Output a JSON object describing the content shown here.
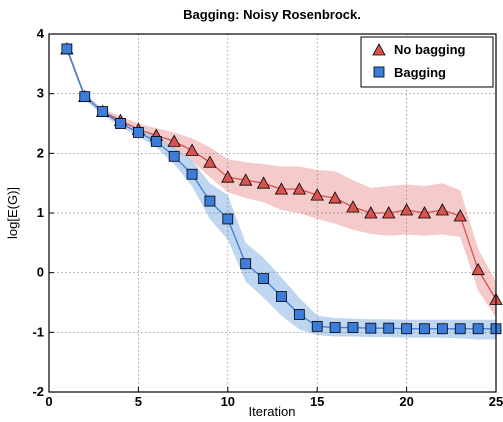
{
  "chart_data": {
    "type": "line",
    "title": "Bagging: Noisy Rosenbrock.",
    "xlabel": "Iteration",
    "ylabel": "log[E(G)]",
    "xlim": [
      0,
      25
    ],
    "ylim": [
      -2,
      4
    ],
    "x_ticks": [
      "0",
      "5",
      "10",
      "15",
      "20",
      "25"
    ],
    "y_ticks": [
      "-2",
      "-1",
      "0",
      "1",
      "2",
      "3",
      "4"
    ],
    "grid": true,
    "legend_position": "top-right",
    "series": [
      {
        "name": "No bagging",
        "marker": "triangle",
        "color": "#d9534f",
        "band_color": "#f2b8b8",
        "x": [
          1,
          2,
          3,
          4,
          5,
          6,
          7,
          8,
          9,
          10,
          11,
          12,
          13,
          14,
          15,
          16,
          17,
          18,
          19,
          20,
          21,
          22,
          23,
          24,
          25
        ],
        "values": [
          3.75,
          2.95,
          2.7,
          2.55,
          2.4,
          2.3,
          2.2,
          2.05,
          1.85,
          1.6,
          1.55,
          1.5,
          1.4,
          1.4,
          1.3,
          1.25,
          1.1,
          1.0,
          1.0,
          1.05,
          1.0,
          1.05,
          0.95,
          0.05,
          -0.45
        ],
        "lower": [
          3.7,
          2.9,
          2.65,
          2.48,
          2.33,
          2.2,
          2.05,
          1.87,
          1.6,
          1.35,
          1.25,
          1.18,
          1.05,
          1.0,
          0.9,
          0.82,
          0.72,
          0.65,
          0.62,
          0.64,
          0.62,
          0.64,
          0.6,
          -0.3,
          -0.75
        ],
        "upper": [
          3.8,
          3.0,
          2.75,
          2.62,
          2.5,
          2.42,
          2.35,
          2.25,
          2.1,
          1.9,
          1.85,
          1.82,
          1.78,
          1.78,
          1.72,
          1.7,
          1.55,
          1.42,
          1.45,
          1.48,
          1.45,
          1.5,
          1.38,
          0.4,
          -0.15
        ]
      },
      {
        "name": "Bagging",
        "marker": "square",
        "color": "#3b7dd8",
        "band_color": "#a9c8ec",
        "x": [
          1,
          2,
          3,
          4,
          5,
          6,
          7,
          8,
          9,
          10,
          11,
          12,
          13,
          14,
          15,
          16,
          17,
          18,
          19,
          20,
          21,
          22,
          23,
          24,
          25
        ],
        "values": [
          3.75,
          2.95,
          2.7,
          2.5,
          2.35,
          2.2,
          1.95,
          1.65,
          1.2,
          0.9,
          0.15,
          -0.1,
          -0.4,
          -0.7,
          -0.9,
          -0.92,
          -0.92,
          -0.93,
          -0.93,
          -0.94,
          -0.94,
          -0.94,
          -0.94,
          -0.94,
          -0.94
        ],
        "lower": [
          3.7,
          2.9,
          2.65,
          2.44,
          2.28,
          2.1,
          1.82,
          1.45,
          0.9,
          0.55,
          -0.15,
          -0.42,
          -0.72,
          -0.95,
          -1.05,
          -1.07,
          -1.07,
          -1.08,
          -1.08,
          -1.09,
          -1.09,
          -1.09,
          -1.1,
          -1.12,
          -1.12
        ],
        "upper": [
          3.8,
          3.0,
          2.75,
          2.56,
          2.42,
          2.3,
          2.1,
          1.88,
          1.5,
          1.3,
          0.5,
          0.25,
          -0.08,
          -0.42,
          -0.72,
          -0.76,
          -0.77,
          -0.78,
          -0.78,
          -0.79,
          -0.79,
          -0.79,
          -0.79,
          -0.79,
          -0.79
        ]
      }
    ]
  }
}
